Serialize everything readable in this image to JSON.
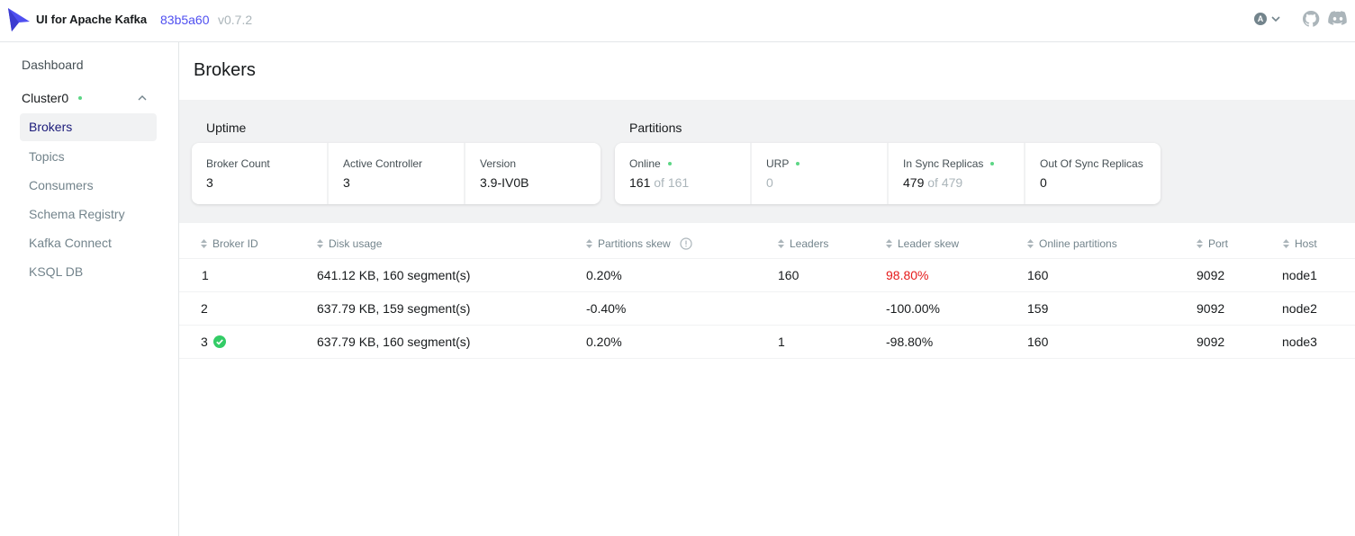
{
  "header": {
    "app_title": "UI for Apache Kafka",
    "commit": "83b5a60",
    "version": "v0.7.2",
    "avatar_letter": "A",
    "icons": [
      "logo-icon",
      "chevron-down-icon",
      "github-icon",
      "discord-icon"
    ]
  },
  "sidebar": {
    "dashboard": "Dashboard",
    "cluster": {
      "name": "Cluster0",
      "status_color": "#5cd685"
    },
    "items": [
      {
        "label": "Brokers",
        "active": true
      },
      {
        "label": "Topics",
        "active": false
      },
      {
        "label": "Consumers",
        "active": false
      },
      {
        "label": "Schema Registry",
        "active": false
      },
      {
        "label": "Kafka Connect",
        "active": false
      },
      {
        "label": "KSQL DB",
        "active": false
      }
    ]
  },
  "page": {
    "title": "Brokers"
  },
  "uptime": {
    "label": "Uptime",
    "cards": [
      {
        "label": "Broker Count",
        "value": "3"
      },
      {
        "label": "Active Controller",
        "value": "3"
      },
      {
        "label": "Version",
        "value": "3.9-IV0B"
      }
    ]
  },
  "partitions": {
    "label": "Partitions",
    "online": {
      "label": "Online",
      "value": "161",
      "of": "of 161"
    },
    "urp": {
      "label": "URP",
      "value": "0"
    },
    "in_sync": {
      "label": "In Sync Replicas",
      "value": "479",
      "of": "of 479"
    },
    "out_of_sync": {
      "label": "Out Of Sync Replicas",
      "value": "0"
    }
  },
  "table": {
    "columns": [
      "Broker ID",
      "Disk usage",
      "Partitions skew",
      "Leaders",
      "Leader skew",
      "Online partitions",
      "Port",
      "Host"
    ],
    "rows": [
      {
        "id": "1",
        "disk": "641.12 KB, 160 segment(s)",
        "pskew": "0.20%",
        "leaders": "160",
        "lskew": "98.80%",
        "online": "160",
        "port": "9092",
        "host": "node1",
        "controller": false
      },
      {
        "id": "2",
        "disk": "637.79 KB, 159 segment(s)",
        "pskew": "-0.40%",
        "leaders": "",
        "lskew": "-100.00%",
        "online": "159",
        "port": "9092",
        "host": "node2",
        "controller": false
      },
      {
        "id": "3",
        "disk": "637.79 KB, 160 segment(s)",
        "pskew": "0.20%",
        "leaders": "1",
        "lskew": "-98.80%",
        "online": "160",
        "port": "9092",
        "host": "node3",
        "controller": true
      }
    ]
  },
  "colors": {
    "accent": "#4f4ff0",
    "ok": "#5cd685",
    "danger": "#e51a1a",
    "active_nav_text": "#1b1b7a"
  }
}
